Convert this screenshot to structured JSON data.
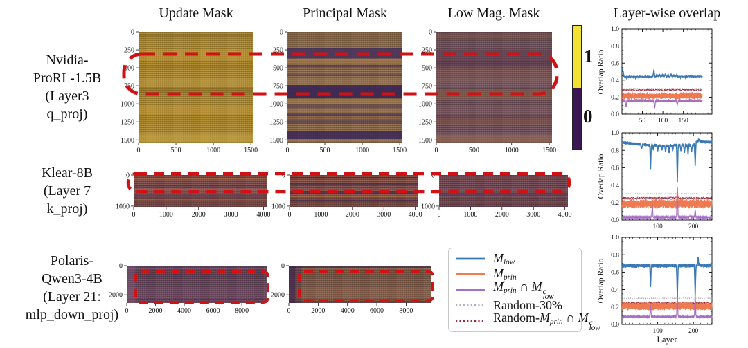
{
  "figure": {
    "column_titles": [
      "Update Mask",
      "Principal Mask",
      "Low Mag. Mask"
    ],
    "overlap_title": "Layer-wise overlap",
    "colorbar": {
      "top_label": "1",
      "bottom_label": "0",
      "top_color": "#f2e235",
      "bottom_color": "#3c1652"
    },
    "highlight_color": "#d01215",
    "rows": [
      {
        "label_lines": [
          "Nvidia-",
          "ProRL-1.5B",
          "(Layer3",
          "q_proj)"
        ]
      },
      {
        "label_lines": [
          "Klear-8B",
          "(Layer 7",
          "k_proj)"
        ]
      },
      {
        "label_lines": [
          "Polaris-",
          "Qwen3-4B",
          "(Layer 21:",
          "mlp_down_proj)"
        ]
      }
    ]
  },
  "legend": {
    "entries": [
      {
        "label": "M_low",
        "color": "#3b79b5",
        "dash": "solid",
        "tokens": [
          [
            "M",
            "it"
          ],
          [
            "low",
            "sub"
          ]
        ]
      },
      {
        "label": "M_prin",
        "color": "#ee7a52",
        "dash": "solid",
        "tokens": [
          [
            "M",
            "it"
          ],
          [
            "prin",
            "sub"
          ]
        ]
      },
      {
        "label": "M_prin ∩ M_low^c",
        "color": "#a66fc6",
        "dash": "solid",
        "tokens": [
          [
            "M",
            "it"
          ],
          [
            "prin",
            "sub"
          ],
          [
            " ∩ ",
            "rm"
          ],
          [
            "M",
            "it"
          ],
          [
            "c|low",
            "stack"
          ]
        ]
      },
      {
        "label": "Random-30%",
        "color": "#b5adc0",
        "dash": "dotted",
        "tokens": [
          [
            "Random-30%",
            "rm"
          ]
        ]
      },
      {
        "label": "Random-M_prin ∩ M_low^c",
        "color": "#9c2b3f",
        "dash": "dotted",
        "tokens": [
          [
            "Random-",
            "rm"
          ],
          [
            "M",
            "it"
          ],
          [
            "prin",
            "sub"
          ],
          [
            " ∩ ",
            "rm"
          ],
          [
            "M",
            "it"
          ],
          [
            "c|low",
            "stack"
          ]
        ]
      }
    ]
  },
  "chart_data": [
    {
      "type": "line",
      "title": "Layer-wise overlap",
      "ylabel": "Overlap Ratio",
      "xlabel": "",
      "model": "Nvidia-ProRL-1.5B",
      "ylim": [
        0,
        1
      ],
      "xlim": [
        0,
        220
      ],
      "yticks": [
        0.0,
        0.2,
        0.4,
        0.6,
        0.8,
        1.0
      ],
      "xticks": [
        50,
        100,
        150
      ],
      "series": [
        {
          "name": "Random-30%",
          "color": "#b5adc0",
          "dash": "dotted",
          "width": 1.1,
          "x0": 1,
          "x1": 196,
          "base": 0.3,
          "amp": 0.003,
          "features": []
        },
        {
          "name": "Random-M_prin∩M_low^c",
          "color": "#9c2b3f",
          "dash": "dotted",
          "width": 1.2,
          "x0": 1,
          "x1": 196,
          "base": 0.285,
          "amp": 0.016,
          "features": []
        },
        {
          "name": "M_prin",
          "color": "#ee7a52",
          "dash": "solid",
          "width": 1.3,
          "x0": 1,
          "x1": 196,
          "base": 0.215,
          "amp": 0.043,
          "features": []
        },
        {
          "name": "M_prin∩M_low^c",
          "color": "#a66fc6",
          "dash": "solid",
          "width": 1.3,
          "x0": 1,
          "x1": 196,
          "base": 0.158,
          "amp": 0.02,
          "features": [
            [
              10,
              0.085
            ],
            [
              80,
              0.07
            ],
            [
              135,
              0.1
            ]
          ]
        },
        {
          "name": "M_low",
          "color": "#3b79b5",
          "dash": "solid",
          "width": 1.6,
          "x0": 1,
          "x1": 196,
          "base": [
            [
              1,
              0.435
            ],
            [
              196,
              0.44
            ]
          ],
          "amp": 0.016,
          "features": [
            [
              1,
              0.55
            ],
            [
              3,
              0.5
            ],
            [
              78,
              0.525
            ],
            [
              85,
              0.468
            ],
            [
              92,
              0.472
            ],
            [
              99,
              0.468
            ],
            [
              106,
              0.476
            ],
            [
              113,
              0.468
            ],
            [
              120,
              0.476
            ],
            [
              127,
              0.462
            ],
            [
              134,
              0.468
            ]
          ]
        }
      ]
    },
    {
      "type": "line",
      "title": "",
      "ylabel": "Overlap Ratio",
      "xlabel": "",
      "model": "Klear-8B",
      "ylim": [
        0,
        1
      ],
      "xlim": [
        0,
        252
      ],
      "yticks": [
        0.0,
        0.2,
        0.4,
        0.6,
        0.8,
        1.0
      ],
      "xticks": [
        100,
        200
      ],
      "series": [
        {
          "name": "Random-30%",
          "color": "#b5adc0",
          "dash": "dotted",
          "width": 1.1,
          "x0": 1,
          "x1": 252,
          "base": 0.3,
          "amp": 0.003,
          "features": []
        },
        {
          "name": "Random-M_prin∩M_low^c",
          "color": "#9c2b3f",
          "dash": "dotted",
          "width": 1.2,
          "x0": 1,
          "x1": 252,
          "base": 0.25,
          "amp": 0.016,
          "features": []
        },
        {
          "name": "M_prin",
          "color": "#ee7a52",
          "dash": "solid",
          "width": 1.3,
          "x0": 1,
          "x1": 252,
          "base": 0.185,
          "amp": 0.055,
          "features": [
            [
              155,
              0.375
            ]
          ]
        },
        {
          "name": "M_prin∩M_low^c",
          "color": "#a66fc6",
          "dash": "solid",
          "width": 1.3,
          "x0": 1,
          "x1": 252,
          "base": 0.032,
          "amp": 0.009,
          "features": [
            [
              85,
              0.165
            ],
            [
              155,
              0.37
            ],
            [
              190,
              0.05
            ],
            [
              205,
              0.12
            ]
          ]
        },
        {
          "name": "M_low",
          "color": "#3b79b5",
          "dash": "solid",
          "width": 1.6,
          "x0": 1,
          "x1": 252,
          "base": [
            [
              1,
              0.89
            ],
            [
              60,
              0.865
            ],
            [
              120,
              0.85
            ],
            [
              150,
              0.86
            ],
            [
              200,
              0.86
            ],
            [
              213,
              0.91
            ],
            [
              220,
              0.9
            ],
            [
              252,
              0.89
            ]
          ],
          "amp": 0.018,
          "features": [
            [
              55,
              0.81
            ],
            [
              80,
              0.585
            ],
            [
              88,
              0.8
            ],
            [
              100,
              0.79
            ],
            [
              112,
              0.8
            ],
            [
              122,
              0.78
            ],
            [
              132,
              0.77
            ],
            [
              142,
              0.79
            ],
            [
              155,
              0.435
            ],
            [
              165,
              0.79
            ],
            [
              175,
              0.77
            ],
            [
              185,
              0.75
            ],
            [
              195,
              0.78
            ],
            [
              205,
              0.62
            ],
            [
              216,
              0.93
            ]
          ]
        }
      ]
    },
    {
      "type": "line",
      "title": "",
      "ylabel": "Overlap Ratio",
      "xlabel": "Layer",
      "model": "Polaris-Qwen3-4B",
      "ylim": [
        0,
        1
      ],
      "xlim": [
        0,
        252
      ],
      "yticks": [
        0.0,
        0.2,
        0.4,
        0.6,
        0.8,
        1.0
      ],
      "xticks": [
        100,
        200
      ],
      "series": [
        {
          "name": "Random-30%",
          "color": "#b5adc0",
          "dash": "dotted",
          "width": 1.1,
          "x0": 1,
          "x1": 252,
          "base": 0.3,
          "amp": 0.003,
          "features": []
        },
        {
          "name": "Random-M_prin∩M_low^c",
          "color": "#9c2b3f",
          "dash": "dotted",
          "width": 1.2,
          "x0": 1,
          "x1": 252,
          "base": 0.245,
          "amp": 0.014,
          "features": []
        },
        {
          "name": "M_prin",
          "color": "#ee7a52",
          "dash": "solid",
          "width": 1.3,
          "x0": 1,
          "x1": 252,
          "base": 0.21,
          "amp": 0.048,
          "features": []
        },
        {
          "name": "M_prin∩M_low^c",
          "color": "#a66fc6",
          "dash": "solid",
          "width": 1.3,
          "x0": 1,
          "x1": 252,
          "base": 0.09,
          "amp": 0.012,
          "features": [
            [
              80,
              0.22
            ],
            [
              155,
              0.36
            ],
            [
              205,
              0.36
            ]
          ]
        },
        {
          "name": "M_low",
          "color": "#3b79b5",
          "dash": "solid",
          "width": 1.6,
          "x0": 1,
          "x1": 252,
          "base": [
            [
              1,
              0.675
            ],
            [
              252,
              0.675
            ]
          ],
          "amp": 0.024,
          "features": [
            [
              80,
              0.43
            ],
            [
              155,
              0.305
            ],
            [
              205,
              0.33
            ],
            [
              213,
              0.775
            ],
            [
              217,
              0.7
            ],
            [
              250,
              0.7
            ]
          ]
        }
      ]
    },
    {
      "type": "heatmap",
      "row": 0,
      "col": 0,
      "column_title": "Update Mask",
      "x_range": [
        0,
        1536
      ],
      "y_range": [
        0,
        1536
      ],
      "xticks": [
        0,
        500,
        1000,
        1500
      ],
      "yticks": [
        0,
        250,
        500,
        750,
        1000,
        1250,
        1500
      ],
      "value_colors": {
        "1": "#f2e235",
        "0": "#3c1652"
      },
      "dominant_value": 1,
      "style": {
        "base": "#b08b2f",
        "bands": [
          [
            0.02,
            0.05,
            "rgba(130,100,30,0.45)"
          ],
          [
            0.3,
            0.33,
            "rgba(140,110,40,0.35)"
          ],
          [
            0.5,
            0.56,
            "rgba(130,100,35,0.40)"
          ],
          [
            0.93,
            1.0,
            "rgba(200,170,70,0.30)"
          ]
        ]
      }
    },
    {
      "type": "heatmap",
      "row": 0,
      "col": 1,
      "column_title": "Principal Mask",
      "x_range": [
        0,
        1536
      ],
      "y_range": [
        0,
        1536
      ],
      "xticks": [
        0,
        500,
        1000,
        1500
      ],
      "yticks": [
        0,
        250,
        500,
        750,
        1000,
        1250,
        1500
      ],
      "value_colors": {
        "1": "#f2e235",
        "0": "#3c1652"
      },
      "dominant_value": 0,
      "style": {
        "base": "#8d6947",
        "bands": [
          [
            0.15,
            0.24,
            "rgba(63,43,92,0.80)"
          ],
          [
            0.25,
            0.29,
            "rgba(170,128,78,0.50)"
          ],
          [
            0.3,
            0.32,
            "rgba(63,43,92,0.55)"
          ],
          [
            0.38,
            0.4,
            "rgba(63,43,92,0.40)"
          ],
          [
            0.48,
            0.6,
            "rgba(52,33,85,0.85)"
          ],
          [
            0.61,
            0.65,
            "rgba(170,128,78,0.50)"
          ],
          [
            0.66,
            0.69,
            "rgba(63,43,92,0.45)"
          ],
          [
            0.73,
            0.76,
            "rgba(63,43,92,0.60)"
          ],
          [
            0.8,
            0.83,
            "rgba(63,43,92,0.40)"
          ],
          [
            0.9,
            0.97,
            "rgba(52,33,85,0.80)"
          ]
        ]
      }
    },
    {
      "type": "heatmap",
      "row": 0,
      "col": 2,
      "column_title": "Low Mag. Mask",
      "x_range": [
        0,
        1536
      ],
      "y_range": [
        0,
        1536
      ],
      "xticks": [
        0,
        500,
        1000,
        1500
      ],
      "yticks": [
        0,
        250,
        500,
        750,
        1000,
        1250,
        1500
      ],
      "value_colors": {
        "1": "#f2e235",
        "0": "#3c1652"
      },
      "dominant_value": 0,
      "style": {
        "base": "#6f4e57",
        "bands": [
          [
            0.02,
            0.06,
            "rgba(150,100,70,0.35)"
          ],
          [
            0.16,
            0.3,
            "rgba(85,55,75,0.50)"
          ],
          [
            0.33,
            0.45,
            "rgba(150,100,70,0.25)"
          ],
          [
            0.52,
            0.62,
            "rgba(155,105,70,0.40)"
          ],
          [
            0.78,
            0.84,
            "rgba(150,100,70,0.30)"
          ],
          [
            0.93,
            1.0,
            "rgba(160,110,75,0.45)"
          ]
        ]
      }
    },
    {
      "type": "heatmap",
      "row": 1,
      "col": 0,
      "column_title": "Update Mask",
      "x_range": [
        0,
        4096
      ],
      "y_range": [
        0,
        1024
      ],
      "xticks": [
        0,
        1000,
        2000,
        3000,
        4000
      ],
      "yticks": [
        0,
        1000
      ],
      "value_colors": {
        "1": "#f2e235",
        "0": "#3c1652"
      },
      "dominant_value": 0,
      "style": {
        "base": "#7c4845",
        "bands": [
          [
            0.1,
            0.14,
            "rgba(185,120,62,0.55)"
          ],
          [
            0.3,
            0.36,
            "rgba(65,45,80,0.50)"
          ],
          [
            0.44,
            0.46,
            "rgba(185,120,62,0.45)"
          ],
          [
            0.6,
            0.72,
            "rgba(80,52,78,0.45)"
          ],
          [
            0.76,
            0.79,
            "rgba(185,120,62,0.40)"
          ]
        ]
      }
    },
    {
      "type": "heatmap",
      "row": 1,
      "col": 1,
      "column_title": "Principal Mask",
      "x_range": [
        0,
        4096
      ],
      "y_range": [
        0,
        1024
      ],
      "xticks": [
        0,
        1000,
        2000,
        3000,
        4000
      ],
      "yticks": [
        0,
        1000
      ],
      "value_colors": {
        "1": "#f2e235",
        "0": "#3c1652"
      },
      "dominant_value": 0,
      "style": {
        "base": "#7e4a42",
        "bands": [
          [
            0.06,
            0.1,
            "rgba(58,38,76,0.70)"
          ],
          [
            0.16,
            0.2,
            "rgba(185,120,62,0.50)"
          ],
          [
            0.26,
            0.3,
            "rgba(58,38,76,0.60)"
          ],
          [
            0.5,
            0.6,
            "rgba(58,38,76,0.65)"
          ],
          [
            0.66,
            0.7,
            "rgba(185,120,62,0.40)"
          ],
          [
            0.78,
            0.84,
            "rgba(58,38,76,0.55)"
          ]
        ]
      }
    },
    {
      "type": "heatmap",
      "row": 1,
      "col": 2,
      "column_title": "Low Mag. Mask",
      "x_range": [
        0,
        4096
      ],
      "y_range": [
        0,
        1024
      ],
      "xticks": [
        0,
        1000,
        2000,
        3000,
        4000
      ],
      "yticks": [
        0,
        1000
      ],
      "value_colors": {
        "1": "#f2e235",
        "0": "#3c1652"
      },
      "dominant_value": 0,
      "style": {
        "base": "#6f4450",
        "bands": [
          [
            0.08,
            0.12,
            "rgba(150,95,65,0.45)"
          ],
          [
            0.3,
            0.34,
            "rgba(70,45,85,0.45)"
          ],
          [
            0.55,
            0.65,
            "rgba(82,52,78,0.55)"
          ],
          [
            0.8,
            0.86,
            "rgba(150,95,65,0.40)"
          ]
        ]
      }
    },
    {
      "type": "heatmap",
      "row": 2,
      "col": 0,
      "column_title": "Update Mask",
      "x_range": [
        0,
        9728
      ],
      "y_range": [
        0,
        2560
      ],
      "xticks": [
        0,
        2000,
        4000,
        6000,
        8000
      ],
      "yticks": [
        0,
        2000
      ],
      "value_colors": {
        "1": "#f2e235",
        "0": "#3c1652"
      },
      "dominant_value": 0,
      "style": {
        "base": "#65425a",
        "bands": [
          [
            0.0,
            0.05,
            "rgba(40,25,55,0.35)"
          ],
          [
            0.93,
            1.0,
            "rgba(120,80,90,0.30)"
          ]
        ],
        "vbands": [
          [
            0.0,
            0.06,
            "rgba(135,95,130,0.35)"
          ]
        ]
      }
    },
    {
      "type": "heatmap",
      "row": 2,
      "col": 1,
      "column_title": "Principal Mask",
      "x_range": [
        0,
        9728
      ],
      "y_range": [
        0,
        2560
      ],
      "xticks": [
        0,
        2000,
        4000,
        6000,
        8000
      ],
      "yticks": [
        0,
        2000
      ],
      "value_colors": {
        "1": "#f2e235",
        "0": "#3c1652"
      },
      "dominant_value": 0,
      "style": {
        "base": "#7d5845",
        "bands": [
          [
            0.0,
            0.06,
            "rgba(45,28,60,0.55)"
          ],
          [
            0.94,
            1.0,
            "rgba(60,38,70,0.35)"
          ]
        ],
        "vbands": [
          [
            0.0,
            0.045,
            "rgba(58,32,78,0.70)"
          ],
          [
            0.045,
            0.09,
            "rgba(58,32,78,0.30)"
          ]
        ]
      }
    }
  ]
}
